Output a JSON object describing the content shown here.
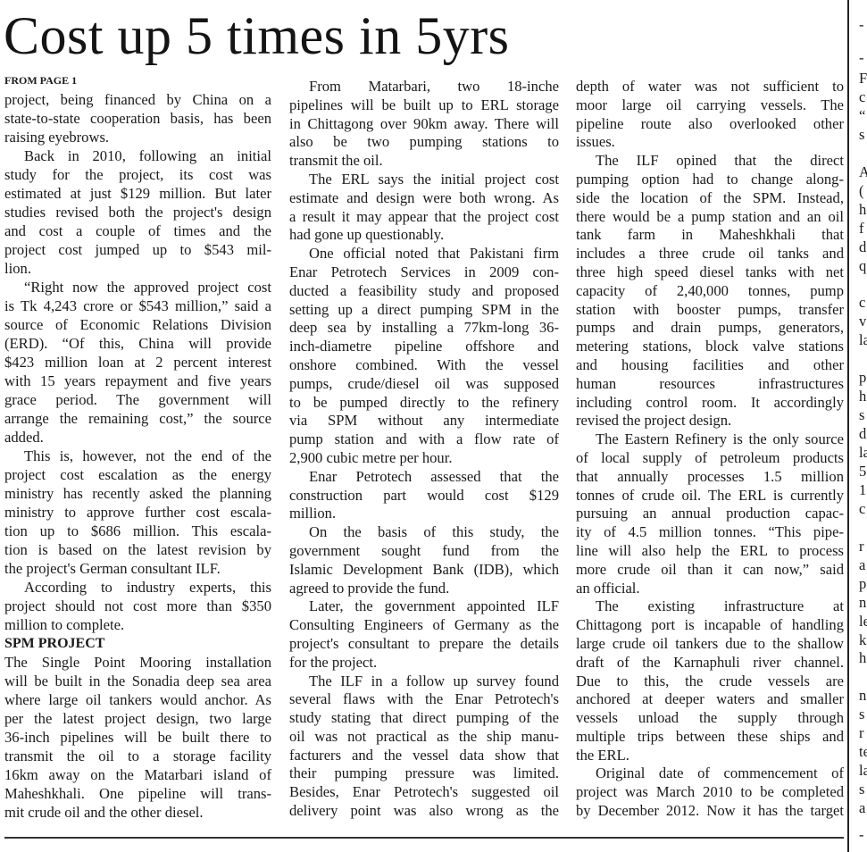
{
  "headline": "Cost up 5 times in 5yrs",
  "columns": [
    {
      "blocks": [
        {
          "type": "kicker",
          "text": "FROM PAGE 1"
        },
        {
          "type": "p",
          "indent": false,
          "lines": [
            "project, being financed by China on a",
            "state-to-state cooperation basis, has been",
            "raising eyebrows."
          ]
        },
        {
          "type": "p",
          "indent": true,
          "lines": [
            "Back in 2010, following an initial",
            "study for the project, its cost was",
            "estimated at just $129 million. But later",
            "studies revised both the project's design",
            "and cost a couple of times and the",
            "project cost jumped up to $543 mil-",
            "lion."
          ]
        },
        {
          "type": "p",
          "indent": true,
          "lines": [
            "“Right now the approved project cost",
            "is Tk 4,243 crore or $543 million,” said a",
            "source of Economic Relations Division",
            "(ERD). “Of this, China will provide",
            "$423 million loan at 2 percent interest",
            "with 15 years repayment and five years",
            "grace period. The government will",
            "arrange the remaining cost,” the source",
            "added."
          ]
        },
        {
          "type": "p",
          "indent": true,
          "lines": [
            "This is, however, not the end of the",
            "project cost escalation as the energy",
            "ministry has recently asked the planning",
            "ministry to approve further cost escala-",
            "tion up to $686 million. This escala-",
            "tion is based on the latest revision by",
            "the project's German consultant ILF."
          ]
        },
        {
          "type": "p",
          "indent": true,
          "lines": [
            "According to industry experts, this",
            "project should not cost more than $350",
            "million to complete."
          ]
        },
        {
          "type": "subhead",
          "text": "SPM PROJECT"
        },
        {
          "type": "p",
          "indent": false,
          "lines": [
            "The Single Point Mooring installation",
            "will be built in the Sonadia deep sea area",
            "where large oil tankers would anchor. As",
            "per the latest project design, two large",
            "36-inch pipelines will be built there to",
            "transmit the oil to a storage facility",
            "16km away on the Matarbari island of",
            "Maheshkhali. One pipeline will trans-",
            "mit crude oil and the other diesel."
          ]
        }
      ]
    },
    {
      "blocks": [
        {
          "type": "p",
          "indent": true,
          "lines": [
            "From Matarbari, two 18-inche",
            "pipelines will be built up to ERL storage",
            "in Chittagong over 90km away. There will",
            "also be two pumping stations to",
            "transmit the oil."
          ]
        },
        {
          "type": "p",
          "indent": true,
          "lines": [
            "The ERL says the initial project cost",
            "estimate and design were both wrong. As",
            "a result it may appear that the project cost",
            "had gone up questionably."
          ]
        },
        {
          "type": "p",
          "indent": true,
          "lines": [
            "One official noted that Pakistani firm",
            "Enar Petrotech Services in 2009 con-",
            "ducted a feasibility study and proposed",
            "setting up a direct pumping SPM in the",
            "deep sea by installing a 77km-long 36-",
            "inch-diametre pipeline offshore and",
            "onshore combined. With the vessel",
            "pumps, crude/diesel oil was supposed",
            "to be pumped directly to the refinery",
            "via SPM without any intermediate",
            "pump station and with a flow rate of",
            "2,900 cubic metre per hour."
          ]
        },
        {
          "type": "p",
          "indent": true,
          "lines": [
            "Enar Petrotech assessed that the",
            "construction part would cost $129",
            "million."
          ]
        },
        {
          "type": "p",
          "indent": true,
          "lines": [
            "On the basis of this study, the",
            "government sought fund from the",
            "Islamic Development Bank (IDB), which",
            "agreed to provide the fund."
          ]
        },
        {
          "type": "p",
          "indent": true,
          "lines": [
            "Later, the government appointed ILF",
            "Consulting Engineers of Germany as the",
            "project's consultant to prepare the details",
            "for the project."
          ]
        },
        {
          "type": "p",
          "indent": true,
          "continues": true,
          "lines": [
            "The ILF in a follow up survey found",
            "several flaws with the Enar Petrotech's",
            "study stating that direct pumping of the",
            "oil was not practical as the ship manu-",
            "facturers and the vessel data show that",
            "their pumping pressure was limited.",
            "Besides, Enar Petrotech's suggested oil",
            "delivery point was also wrong as the"
          ]
        }
      ]
    },
    {
      "blocks": [
        {
          "type": "p",
          "indent": false,
          "lines": [
            "depth of water was not sufficient to",
            "moor large oil carrying vessels. The",
            "pipeline route also overlooked other",
            "issues."
          ]
        },
        {
          "type": "p",
          "indent": true,
          "lines": [
            "The ILF opined that the direct",
            "pumping option had to change along-",
            "side the location of the SPM. Instead,",
            "there would be a pump station and an oil",
            "tank farm in Maheshkhali that",
            "includes a three crude oil tanks and",
            "three high speed diesel tanks with net",
            "capacity of 2,40,000 tonnes, pump",
            "station with booster pumps, transfer",
            "pumps and drain pumps, generators,",
            "metering stations, block valve stations",
            "and housing facilities and other",
            "human resources infrastructures",
            "including control room. It accordingly",
            "revised the project design."
          ]
        },
        {
          "type": "p",
          "indent": true,
          "lines": [
            "The Eastern Refinery is the only source",
            "of local supply of petroleum products",
            "that annually processes 1.5 million",
            "tonnes of crude oil. The ERL is currently",
            "pursuing an annual production capac-",
            "ity of 4.5 million tonnes. “This pipe-",
            "line will also help the ERL to process",
            "more crude oil than it can now,” said",
            "an official."
          ]
        },
        {
          "type": "p",
          "indent": true,
          "lines": [
            "The existing infrastructure at",
            "Chittagong port is incapable of handling",
            "large crude oil tankers due to the shallow",
            "draft of the Karnaphuli river channel.",
            "Due to this, the crude vessels are",
            "anchored at deeper waters and smaller",
            "vessels unload the supply through",
            "multiple trips between these ships and",
            "the ERL."
          ]
        },
        {
          "type": "p",
          "indent": true,
          "continues": true,
          "lines": [
            "Original date of commencement of",
            "project was March 2010 to be completed",
            "by December 2012. Now it has the target"
          ]
        }
      ]
    }
  ],
  "adjacent_column_fragments": [
    "-",
    "-",
    "F",
    "c",
    "“",
    "s",
    "",
    "A",
    "(",
    "h",
    "f",
    "d",
    "q",
    "",
    "c",
    "v",
    "la",
    "",
    "p",
    "h",
    "s",
    "d",
    "la",
    "5",
    "1",
    "c",
    "",
    "r",
    "a",
    "p",
    "n",
    "le",
    "k",
    "h",
    "",
    "n",
    "s",
    "r",
    "te",
    "la",
    "s",
    "a",
    "-"
  ]
}
